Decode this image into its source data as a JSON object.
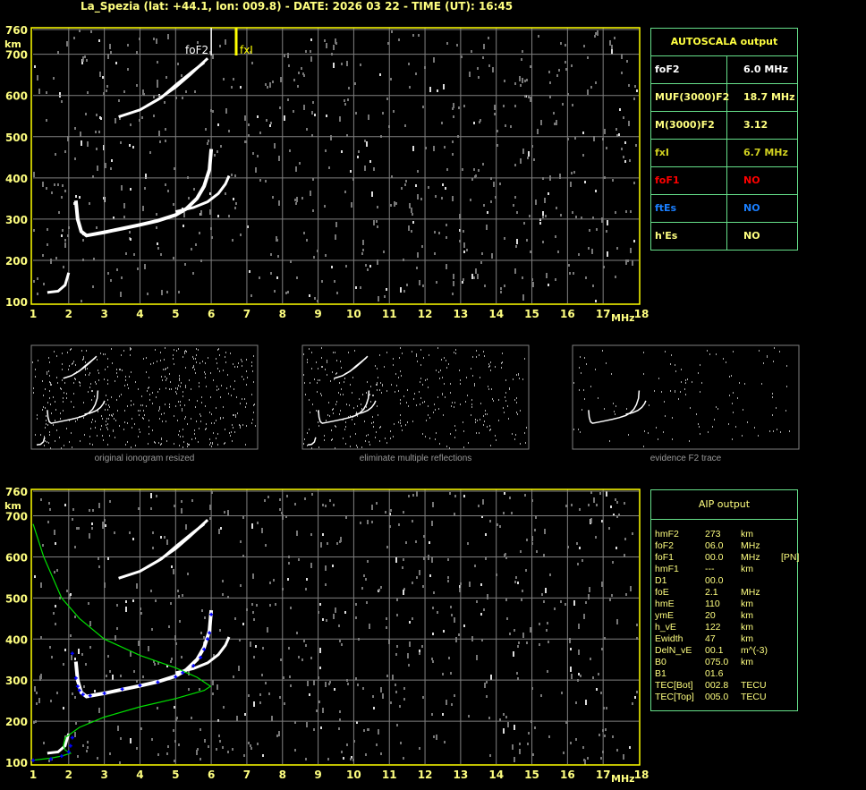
{
  "header": {
    "title": "La_Spezia (lat: +44.1, lon: 009.8) - DATE: 2026 03 22 - TIME (UT): 16:45"
  },
  "colors": {
    "axis": "#ffff00",
    "grid": "#808080",
    "table_border": "#66e08a",
    "profile": "#00e000",
    "virtual_height": "#0000ff",
    "echo": "#ffffff"
  },
  "autoscala": {
    "title": "AUTOSCALA output",
    "rows": [
      {
        "key": "foF2",
        "value": "6.0 MHz",
        "color": "#ffffff"
      },
      {
        "key": "MUF(3000)F2",
        "value": "18.7 MHz",
        "color": "#ffff80"
      },
      {
        "key": "M(3000)F2",
        "value": "3.12",
        "color": "#ffff80"
      },
      {
        "key": "fxI",
        "value": "6.7 MHz",
        "color": "#d0d020"
      },
      {
        "key": "foF1",
        "value": "NO",
        "color": "#ff0000"
      },
      {
        "key": "ftEs",
        "value": "NO",
        "color": "#1a7fff"
      },
      {
        "key": "h'Es",
        "value": "NO",
        "color": "#ffff80"
      }
    ]
  },
  "aip": {
    "title": "AIP output",
    "rows": [
      [
        "hmF2",
        "273",
        "km",
        ""
      ],
      [
        "foF2",
        "06.0",
        "MHz",
        ""
      ],
      [
        "foF1",
        "00.0",
        "MHz",
        "[PN]"
      ],
      [
        "hmF1",
        "---",
        "km",
        ""
      ],
      [
        "D1",
        "00.0",
        "",
        ""
      ],
      [
        "foE",
        "2.1",
        "MHz",
        ""
      ],
      [
        "hmE",
        "110",
        "km",
        ""
      ],
      [
        "ymE",
        "20",
        "km",
        ""
      ],
      [
        "h_vE",
        "122",
        "km",
        ""
      ],
      [
        "Ewidth",
        "47",
        "km",
        ""
      ],
      [
        "DelN_vE",
        "00.1",
        "m^(-3)",
        ""
      ],
      [
        "B0",
        "075.0",
        "km",
        ""
      ],
      [
        "B1",
        "01.6",
        "",
        ""
      ],
      [
        "TEC[Bot]",
        "002.8",
        "TECU",
        ""
      ],
      [
        "TEC[Top]",
        "005.0",
        "TECU",
        ""
      ]
    ]
  },
  "thumbnails": [
    {
      "label": "original ionogram resized"
    },
    {
      "label": "eliminate multiple reflections"
    },
    {
      "label": "evidence F2 trace"
    }
  ],
  "chart_data": [
    {
      "type": "scatter",
      "title": "",
      "xlabel": "MHz",
      "ylabel": "km",
      "xlim": [
        1,
        18
      ],
      "ylim": [
        100,
        760
      ],
      "xticks": [
        "1",
        "2",
        "3",
        "4",
        "5",
        "6",
        "7",
        "8",
        "9",
        "10",
        "11",
        "12",
        "13",
        "14",
        "15",
        "16",
        "17",
        "18"
      ],
      "yticks": [
        "100",
        "200",
        "300",
        "400",
        "500",
        "600",
        "700",
        "760"
      ],
      "grid": true,
      "markers": [
        {
          "label": "foF2",
          "freq": 6.0,
          "color": "#ffffff"
        },
        {
          "label": "fxI",
          "freq": 6.7,
          "color": "#ffff00"
        }
      ],
      "traces": {
        "o_F": [
          [
            2.2,
            345
          ],
          [
            2.25,
            300
          ],
          [
            2.35,
            270
          ],
          [
            2.5,
            260
          ],
          [
            3,
            268
          ],
          [
            3.5,
            277
          ],
          [
            4,
            286
          ],
          [
            4.5,
            296
          ],
          [
            5,
            310
          ],
          [
            5.3,
            325
          ],
          [
            5.6,
            350
          ],
          [
            5.8,
            380
          ],
          [
            5.95,
            420
          ],
          [
            6,
            470
          ]
        ],
        "x_F": [
          [
            5,
            318
          ],
          [
            5.5,
            328
          ],
          [
            5.9,
            342
          ],
          [
            6.2,
            362
          ],
          [
            6.4,
            385
          ],
          [
            6.5,
            405
          ]
        ],
        "second_hop_a": [
          [
            3.4,
            548
          ],
          [
            4,
            565
          ],
          [
            4.5,
            590
          ],
          [
            5,
            620
          ],
          [
            5.4,
            650
          ],
          [
            5.9,
            690
          ]
        ],
        "second_hop_b": [
          [
            4.2,
            575
          ],
          [
            4.6,
            595
          ],
          [
            5,
            625
          ],
          [
            5.5,
            660
          ],
          [
            5.8,
            680
          ]
        ],
        "e": [
          [
            1.4,
            122
          ],
          [
            1.7,
            125
          ],
          [
            1.9,
            140
          ],
          [
            2,
            170
          ]
        ]
      }
    },
    {
      "type": "line",
      "title": "",
      "xlabel": "MHz",
      "ylabel": "km",
      "xlim": [
        1,
        18
      ],
      "ylim": [
        100,
        760
      ],
      "xticks": [
        "1",
        "2",
        "3",
        "4",
        "5",
        "6",
        "7",
        "8",
        "9",
        "10",
        "11",
        "12",
        "13",
        "14",
        "15",
        "16",
        "17",
        "18"
      ],
      "yticks": [
        "100",
        "200",
        "300",
        "400",
        "500",
        "600",
        "700",
        "760"
      ],
      "grid": true,
      "profile": [
        [
          1,
          680
        ],
        [
          1.3,
          600
        ],
        [
          1.8,
          500
        ],
        [
          2.3,
          450
        ],
        [
          3,
          400
        ],
        [
          4,
          360
        ],
        [
          5,
          330
        ],
        [
          5.6,
          307
        ],
        [
          5.98,
          285
        ],
        [
          5.8,
          275
        ],
        [
          5,
          255
        ],
        [
          4,
          235
        ],
        [
          3,
          210
        ],
        [
          2.3,
          185
        ],
        [
          1.9,
          160
        ],
        [
          1.85,
          140
        ],
        [
          1.9,
          130
        ],
        [
          2.05,
          122
        ],
        [
          1.8,
          115
        ],
        [
          1.5,
          110
        ],
        [
          1,
          105
        ]
      ],
      "virtual_height": [
        [
          1,
          105
        ],
        [
          1.5,
          108
        ],
        [
          1.8,
          115
        ],
        [
          2,
          125
        ],
        [
          2.05,
          140
        ],
        [
          2.1,
          160
        ],
        [
          2.1,
          365
        ],
        [
          2.2,
          305
        ],
        [
          2.25,
          285
        ],
        [
          2.3,
          275
        ],
        [
          2.4,
          265
        ],
        [
          2.6,
          262
        ],
        [
          3,
          268
        ],
        [
          3.5,
          278
        ],
        [
          4,
          287
        ],
        [
          4.5,
          295
        ],
        [
          5,
          308
        ],
        [
          5.2,
          318
        ],
        [
          5.5,
          335
        ],
        [
          5.7,
          355
        ],
        [
          5.8,
          375
        ],
        [
          5.9,
          400
        ],
        [
          5.95,
          415
        ],
        [
          6,
          460
        ]
      ]
    }
  ]
}
